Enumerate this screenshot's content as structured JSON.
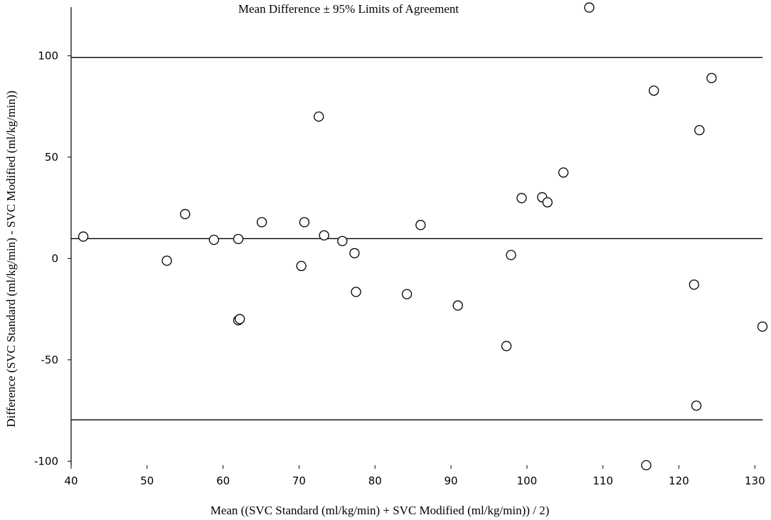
{
  "chart_data": {
    "type": "scatter",
    "title": "Mean Difference ± 95% Limits of Agreement",
    "xlabel": "Mean ((SVC Standard (ml/kg/min) + SVC Modified (ml/kg/min)) / 2)",
    "ylabel": "Difference (SVC Standard (ml/kg/min) - SVC Modified (ml/kg/min))",
    "xlim": [
      40,
      131
    ],
    "ylim": [
      -102,
      124
    ],
    "x_ticks": [
      40,
      50,
      60,
      70,
      80,
      90,
      100,
      110,
      120,
      130
    ],
    "x_tick_labels": [
      "40",
      "50",
      "60",
      "70",
      "80",
      "90",
      "100",
      "110",
      "120",
      "130"
    ],
    "y_ticks": [
      -100,
      -50,
      0,
      50,
      100
    ],
    "y_tick_labels": [
      "-100",
      "-50",
      "0",
      "50",
      "100"
    ],
    "grid": false,
    "reference_lines": [
      {
        "y": 99.2
      },
      {
        "y": 9.8
      },
      {
        "y": -79.6
      }
    ],
    "points": [
      {
        "x": 41.6,
        "y": 10.8
      },
      {
        "x": 52.6,
        "y": -1.1
      },
      {
        "x": 55.0,
        "y": 21.9
      },
      {
        "x": 58.8,
        "y": 9.2
      },
      {
        "x": 62.0,
        "y": 9.6
      },
      {
        "x": 62.0,
        "y": -30.5
      },
      {
        "x": 62.2,
        "y": -29.9
      },
      {
        "x": 65.1,
        "y": 17.9
      },
      {
        "x": 70.3,
        "y": -3.7
      },
      {
        "x": 70.7,
        "y": 17.9
      },
      {
        "x": 72.6,
        "y": 70.0
      },
      {
        "x": 73.3,
        "y": 11.4
      },
      {
        "x": 75.7,
        "y": 8.6
      },
      {
        "x": 77.3,
        "y": 2.6
      },
      {
        "x": 77.5,
        "y": -16.5
      },
      {
        "x": 84.2,
        "y": -17.6
      },
      {
        "x": 86.0,
        "y": 16.5
      },
      {
        "x": 90.9,
        "y": -23.2
      },
      {
        "x": 97.3,
        "y": -43.2
      },
      {
        "x": 97.9,
        "y": 1.7
      },
      {
        "x": 99.3,
        "y": 29.8
      },
      {
        "x": 102.0,
        "y": 30.2
      },
      {
        "x": 102.7,
        "y": 27.7
      },
      {
        "x": 104.8,
        "y": 42.4
      },
      {
        "x": 108.2,
        "y": 123.8
      },
      {
        "x": 115.7,
        "y": -102.0
      },
      {
        "x": 116.7,
        "y": 82.8
      },
      {
        "x": 122.0,
        "y": -12.9
      },
      {
        "x": 122.3,
        "y": -72.6
      },
      {
        "x": 122.7,
        "y": 63.3
      },
      {
        "x": 124.3,
        "y": 89.0
      },
      {
        "x": 131.0,
        "y": -33.6
      }
    ]
  }
}
